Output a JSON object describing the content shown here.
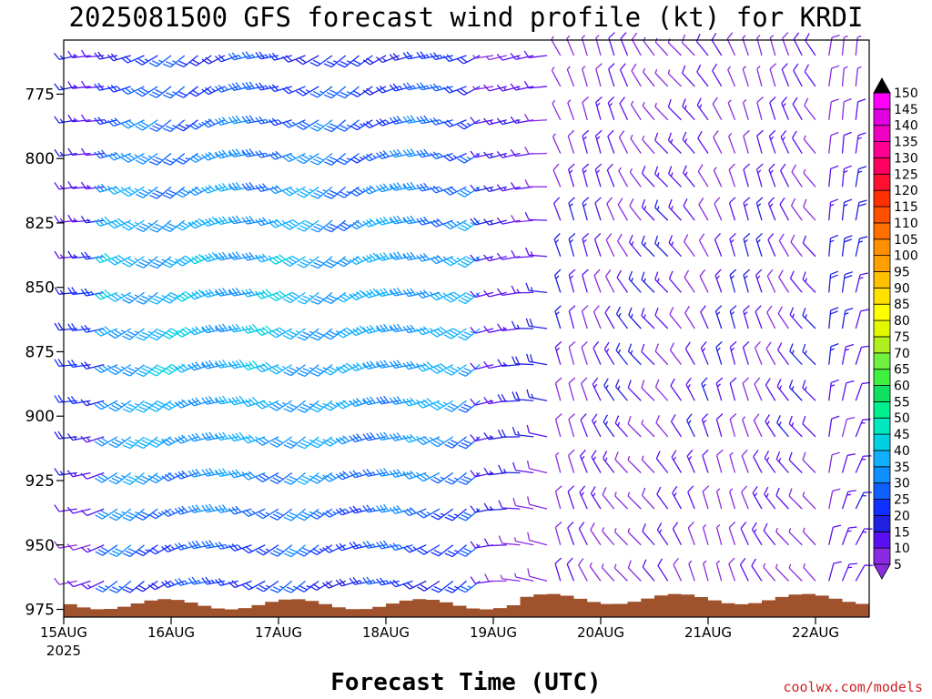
{
  "chart_data": {
    "type": "wind-barb time-height",
    "title": "2025081500 GFS forecast wind profile (kt) for KRDI",
    "xlabel": "Forecast Time (UTC)",
    "ylabel": "",
    "credit": "coolwx.com/models",
    "x_ticks": [
      "15AUG",
      "16AUG",
      "17AUG",
      "18AUG",
      "19AUG",
      "20AUG",
      "21AUG",
      "22AUG"
    ],
    "x_year_label": "2025",
    "x_range_hours": [
      0,
      180
    ],
    "y_ticks": [
      775,
      800,
      825,
      850,
      875,
      900,
      925,
      950,
      975
    ],
    "y_range_hPa": [
      978,
      754
    ],
    "barb_levels_hPa": [
      760,
      772,
      785,
      798,
      811,
      824,
      838,
      852,
      866,
      880,
      894,
      908,
      922,
      936,
      950,
      964
    ],
    "time_step_hours": 3,
    "colorbar": {
      "units": "kt",
      "ticks": [
        5,
        10,
        15,
        20,
        25,
        30,
        35,
        40,
        45,
        50,
        55,
        60,
        65,
        70,
        75,
        80,
        85,
        90,
        95,
        100,
        105,
        110,
        115,
        120,
        125,
        130,
        135,
        140,
        145,
        150
      ],
      "colors": [
        "#8a2be2",
        "#5a10f0",
        "#2020e0",
        "#1030ff",
        "#1060ff",
        "#1090ff",
        "#10b0ff",
        "#00d0e0",
        "#00e8c0",
        "#00f090",
        "#10e060",
        "#40f040",
        "#70f040",
        "#b0f020",
        "#e0f800",
        "#ffff00",
        "#ffe000",
        "#ffc000",
        "#ffa000",
        "#ff9000",
        "#ff7000",
        "#ff5000",
        "#ff3000",
        "#ff1030",
        "#ff0060",
        "#ff0090",
        "#f000c0",
        "#e000e0",
        "#ff00ff"
      ]
    },
    "wind_speed_regimes_kt": [
      {
        "from_hour": 0,
        "to_hour": 12,
        "speed": 15,
        "direction_deg": 250
      },
      {
        "from_hour": 12,
        "to_hour": 60,
        "speed": 30,
        "direction_deg": 245
      },
      {
        "from_hour": 60,
        "to_hour": 96,
        "speed": 28,
        "direction_deg": 245
      },
      {
        "from_hour": 96,
        "to_hour": 110,
        "speed": 12,
        "direction_deg": 270
      },
      {
        "from_hour": 110,
        "to_hour": 170,
        "speed": 10,
        "direction_deg": 330
      },
      {
        "from_hour": 170,
        "to_hour": 180,
        "speed": 12,
        "direction_deg": 20
      }
    ],
    "terrain_color": "#a0522d",
    "grid": false
  }
}
